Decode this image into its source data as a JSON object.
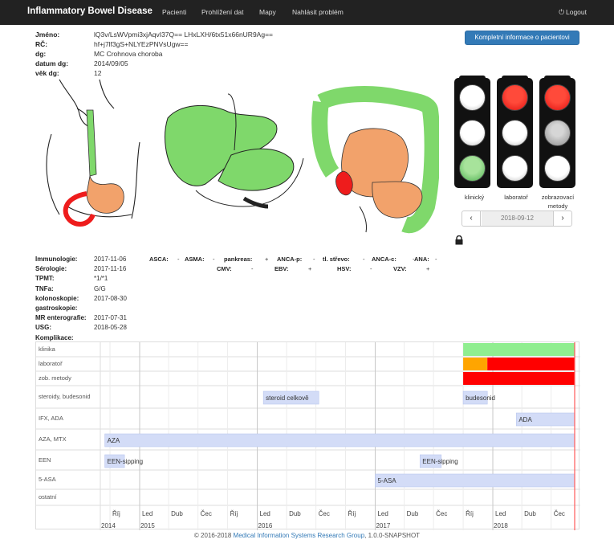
{
  "navbar": {
    "brand": "Inflammatory Bowel Disease",
    "links": [
      "Pacienti",
      "Prohlížení dat",
      "Mapy",
      "Nahlásit problém"
    ],
    "logout": "Logout"
  },
  "patient": {
    "fields": [
      {
        "label": "Jméno:",
        "value": "lQ3v/LsWVpmi3xjAqvI37Q== LHxLXH/6tx51x66nUR9Ag=="
      },
      {
        "label": "RČ:",
        "value": "hf+j7lf3gS+NLYEzPNVsUgw=="
      },
      {
        "label": "dg:",
        "value": "MC   Crohnova choroba"
      },
      {
        "label": "datum dg:",
        "value": "2014/09/05"
      },
      {
        "label": "věk dg:",
        "value": "12"
      }
    ],
    "full_info_button": "Kompletní informace o pacientovi"
  },
  "status_lights": {
    "columns": [
      {
        "label": "klinický",
        "lights": [
          "white",
          "white",
          "green"
        ]
      },
      {
        "label": "laboratoř",
        "lights": [
          "red",
          "white",
          "white"
        ]
      },
      {
        "label": "zobrazovací metody",
        "lights": [
          "red",
          "gray",
          "white"
        ]
      }
    ],
    "date": "2018-09-12"
  },
  "exams": [
    {
      "label": "Immunologie:",
      "value": "2017-11-06"
    },
    {
      "label": "Sérologie:",
      "value": "2017-11-16"
    },
    {
      "label": "TPMT:",
      "value": "*1/*1"
    },
    {
      "label": "TNFa:",
      "value": "G/G"
    },
    {
      "label": "kolonoskopie:",
      "value": "2017-08-30"
    },
    {
      "label": "gastroskopie:",
      "value": ""
    },
    {
      "label": "MR enterografie:",
      "value": "2017-07-31"
    },
    {
      "label": "USG:",
      "value": "2018-05-28"
    },
    {
      "label": "Komplikace:",
      "value": ""
    }
  ],
  "antibodies_row1": [
    {
      "name": "ASCA:",
      "value": "-"
    },
    {
      "name": "ASMA:",
      "value": "-"
    },
    {
      "name": "pankreas:",
      "value": "+"
    },
    {
      "name": "ANCA-p:",
      "value": "-"
    },
    {
      "name": "tl. střevo:",
      "value": "-"
    },
    {
      "name": "ANCA-c:",
      "value": "-"
    },
    {
      "name": "ANA:",
      "value": "-"
    }
  ],
  "antibodies_row2": [
    {
      "name": "CMV:",
      "value": "-"
    },
    {
      "name": "EBV:",
      "value": "+"
    },
    {
      "name": "HSV:",
      "value": "-"
    },
    {
      "name": "VZV:",
      "value": "+"
    }
  ],
  "timeline": {
    "tracks": [
      "klinika",
      "laboratoř",
      "zob. metody",
      "steroidy, budesonid",
      "IFX, ADA",
      "AZA, MTX",
      "EEN",
      "5-ASA",
      "ostatní"
    ],
    "months": [
      "Říj",
      "Led",
      "Dub",
      "Čec",
      "Říj",
      "Led",
      "Dub",
      "Čec",
      "Říj",
      "Led",
      "Dub",
      "Čec",
      "Říj",
      "Led",
      "Dub",
      "Čec"
    ],
    "years": [
      "2014",
      "2015",
      "2016",
      "2017",
      "2018"
    ],
    "status_bars": [
      {
        "track": 0,
        "start": "2017-10",
        "end": "2018-09-12",
        "color": "#90ee90"
      },
      {
        "track": 1,
        "start": "2017-10",
        "end": "2017-12-15",
        "color": "#ffa500"
      },
      {
        "track": 1,
        "start": "2017-12-15",
        "end": "2018-09-12",
        "color": "#ff0000"
      },
      {
        "track": 2,
        "start": "2017-10",
        "end": "2018-09-12",
        "color": "#ff0000"
      }
    ],
    "therapy_bars": [
      {
        "track": 3,
        "label": "steroid celkově",
        "start": "2016-01-20",
        "end": "2016-07-10"
      },
      {
        "track": 3,
        "label": "budesonid",
        "start": "2017-10",
        "end": "2017-12-15"
      },
      {
        "track": 4,
        "label": "ADA",
        "start": "2018-03-15",
        "end": "2018-09-12"
      },
      {
        "track": 5,
        "label": "AZA",
        "start": "2014-09-15",
        "end": "2018-09-12"
      },
      {
        "track": 6,
        "label": "EEN-sipping",
        "start": "2014-09-15",
        "end": "2014-11-15"
      },
      {
        "track": 6,
        "label": "EEN-sipping",
        "start": "2017-05-20",
        "end": "2017-07-25"
      },
      {
        "track": 7,
        "label": "5-ASA",
        "start": "2017-01-01",
        "end": "2018-09-12"
      }
    ],
    "current_date": "2018-09-12"
  },
  "footer": {
    "prefix": "© 2016-2018 ",
    "link": "Medical Information Systems Research Group",
    "suffix": ", 1.0.0-SNAPSHOT"
  }
}
